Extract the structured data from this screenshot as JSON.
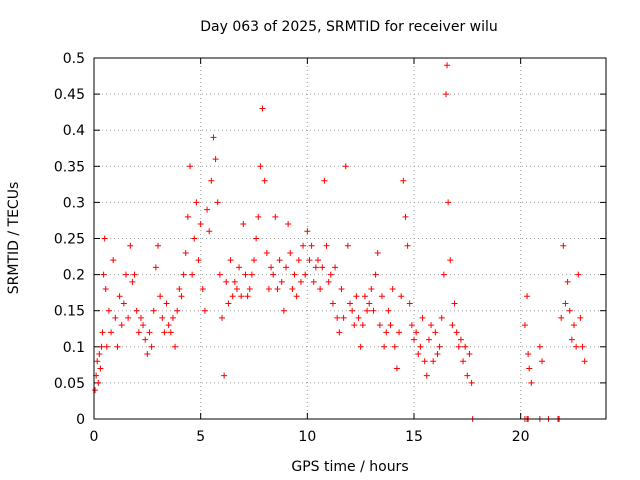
{
  "chart_data": {
    "type": "scatter",
    "title": "Day 063 of 2025, SRMTID for receiver wilu",
    "xlabel": "GPS time / hours",
    "ylabel": "SRMTID / TECUs",
    "xlim": [
      0,
      24
    ],
    "ylim": [
      0,
      0.5
    ],
    "x_ticks": [
      0,
      5,
      10,
      15,
      20
    ],
    "x_tick_labels": [
      "0",
      "5",
      "10",
      "15",
      "20"
    ],
    "y_ticks": [
      0,
      0.05,
      0.1,
      0.15,
      0.2,
      0.25,
      0.3,
      0.35,
      0.4,
      0.45,
      0.5
    ],
    "y_tick_labels": [
      "0",
      "0.05",
      "0.1",
      "0.15",
      "0.2",
      "0.25",
      "0.3",
      "0.35",
      "0.4",
      "0.45",
      "0.5"
    ],
    "grid": true,
    "marker": "+",
    "series": [
      {
        "name": "SRMTID",
        "color": "#ff0000",
        "points": [
          [
            0.05,
            0.04
          ],
          [
            0.1,
            0.06
          ],
          [
            0.15,
            0.08
          ],
          [
            0.2,
            0.05
          ],
          [
            0.25,
            0.09
          ],
          [
            0.3,
            0.07
          ],
          [
            0.35,
            0.1
          ],
          [
            0.4,
            0.12
          ],
          [
            0.45,
            0.2
          ],
          [
            0.5,
            0.25
          ],
          [
            0.55,
            0.18
          ],
          [
            0.6,
            0.1
          ],
          [
            0.7,
            0.15
          ],
          [
            0.8,
            0.12
          ],
          [
            0.9,
            0.22
          ],
          [
            1.0,
            0.14
          ],
          [
            1.1,
            0.1
          ],
          [
            1.2,
            0.17
          ],
          [
            1.3,
            0.13
          ],
          [
            1.4,
            0.16
          ],
          [
            1.5,
            0.2
          ],
          [
            1.6,
            0.14
          ],
          [
            1.7,
            0.24
          ],
          [
            1.8,
            0.19
          ],
          [
            1.9,
            0.2
          ],
          [
            2.0,
            0.15
          ],
          [
            2.1,
            0.12
          ],
          [
            2.2,
            0.14
          ],
          [
            2.3,
            0.13
          ],
          [
            2.4,
            0.11
          ],
          [
            2.5,
            0.09
          ],
          [
            2.6,
            0.12
          ],
          [
            2.7,
            0.1
          ],
          [
            2.8,
            0.15
          ],
          [
            2.9,
            0.21
          ],
          [
            3.0,
            0.24
          ],
          [
            3.1,
            0.17
          ],
          [
            3.2,
            0.14
          ],
          [
            3.3,
            0.12
          ],
          [
            3.4,
            0.16
          ],
          [
            3.5,
            0.13
          ],
          [
            3.6,
            0.12
          ],
          [
            3.7,
            0.14
          ],
          [
            3.8,
            0.1
          ],
          [
            3.9,
            0.15
          ],
          [
            4.0,
            0.18
          ],
          [
            4.1,
            0.17
          ],
          [
            4.2,
            0.2
          ],
          [
            4.3,
            0.23
          ],
          [
            4.4,
            0.28
          ],
          [
            4.5,
            0.35
          ],
          [
            4.6,
            0.2
          ],
          [
            4.7,
            0.25
          ],
          [
            4.8,
            0.3
          ],
          [
            4.9,
            0.22
          ],
          [
            5.0,
            0.27
          ],
          [
            5.1,
            0.18
          ],
          [
            5.2,
            0.15
          ],
          [
            5.3,
            0.29
          ],
          [
            5.4,
            0.26
          ],
          [
            5.5,
            0.33
          ],
          [
            5.6,
            0.39
          ],
          [
            5.7,
            0.36
          ],
          [
            5.8,
            0.3
          ],
          [
            5.9,
            0.2
          ],
          [
            6.0,
            0.14
          ],
          [
            6.1,
            0.06
          ],
          [
            6.2,
            0.19
          ],
          [
            6.3,
            0.16
          ],
          [
            6.4,
            0.22
          ],
          [
            6.5,
            0.17
          ],
          [
            6.6,
            0.19
          ],
          [
            6.7,
            0.18
          ],
          [
            6.8,
            0.21
          ],
          [
            6.9,
            0.17
          ],
          [
            7.0,
            0.27
          ],
          [
            7.1,
            0.2
          ],
          [
            7.2,
            0.17
          ],
          [
            7.3,
            0.18
          ],
          [
            7.4,
            0.2
          ],
          [
            7.5,
            0.22
          ],
          [
            7.6,
            0.25
          ],
          [
            7.7,
            0.28
          ],
          [
            7.8,
            0.35
          ],
          [
            7.9,
            0.43
          ],
          [
            8.0,
            0.33
          ],
          [
            8.1,
            0.23
          ],
          [
            8.2,
            0.18
          ],
          [
            8.3,
            0.21
          ],
          [
            8.4,
            0.2
          ],
          [
            8.5,
            0.28
          ],
          [
            8.6,
            0.18
          ],
          [
            8.7,
            0.22
          ],
          [
            8.8,
            0.19
          ],
          [
            8.9,
            0.15
          ],
          [
            9.0,
            0.21
          ],
          [
            9.1,
            0.27
          ],
          [
            9.2,
            0.23
          ],
          [
            9.3,
            0.18
          ],
          [
            9.4,
            0.2
          ],
          [
            9.5,
            0.17
          ],
          [
            9.6,
            0.22
          ],
          [
            9.7,
            0.19
          ],
          [
            9.8,
            0.24
          ],
          [
            9.9,
            0.2
          ],
          [
            10.0,
            0.26
          ],
          [
            10.1,
            0.22
          ],
          [
            10.2,
            0.24
          ],
          [
            10.3,
            0.19
          ],
          [
            10.4,
            0.21
          ],
          [
            10.5,
            0.22
          ],
          [
            10.6,
            0.18
          ],
          [
            10.7,
            0.21
          ],
          [
            10.8,
            0.33
          ],
          [
            10.9,
            0.24
          ],
          [
            11.0,
            0.19
          ],
          [
            11.1,
            0.2
          ],
          [
            11.2,
            0.16
          ],
          [
            11.3,
            0.21
          ],
          [
            11.4,
            0.14
          ],
          [
            11.5,
            0.12
          ],
          [
            11.6,
            0.18
          ],
          [
            11.7,
            0.14
          ],
          [
            11.8,
            0.35
          ],
          [
            11.9,
            0.24
          ],
          [
            12.0,
            0.16
          ],
          [
            12.1,
            0.15
          ],
          [
            12.2,
            0.13
          ],
          [
            12.3,
            0.17
          ],
          [
            12.4,
            0.14
          ],
          [
            12.5,
            0.1
          ],
          [
            12.6,
            0.13
          ],
          [
            12.7,
            0.17
          ],
          [
            12.8,
            0.15
          ],
          [
            12.9,
            0.16
          ],
          [
            13.0,
            0.18
          ],
          [
            13.1,
            0.15
          ],
          [
            13.2,
            0.2
          ],
          [
            13.3,
            0.23
          ],
          [
            13.4,
            0.13
          ],
          [
            13.5,
            0.17
          ],
          [
            13.6,
            0.1
          ],
          [
            13.7,
            0.12
          ],
          [
            13.8,
            0.15
          ],
          [
            13.9,
            0.13
          ],
          [
            14.0,
            0.18
          ],
          [
            14.1,
            0.1
          ],
          [
            14.2,
            0.07
          ],
          [
            14.3,
            0.12
          ],
          [
            14.4,
            0.17
          ],
          [
            14.5,
            0.33
          ],
          [
            14.6,
            0.28
          ],
          [
            14.7,
            0.24
          ],
          [
            14.8,
            0.16
          ],
          [
            14.9,
            0.13
          ],
          [
            15.0,
            0.11
          ],
          [
            15.1,
            0.12
          ],
          [
            15.2,
            0.09
          ],
          [
            15.3,
            0.1
          ],
          [
            15.4,
            0.14
          ],
          [
            15.5,
            0.08
          ],
          [
            15.6,
            0.06
          ],
          [
            15.7,
            0.11
          ],
          [
            15.8,
            0.13
          ],
          [
            15.9,
            0.08
          ],
          [
            16.0,
            0.12
          ],
          [
            16.1,
            0.09
          ],
          [
            16.2,
            0.1
          ],
          [
            16.3,
            0.14
          ],
          [
            16.4,
            0.2
          ],
          [
            16.5,
            0.45
          ],
          [
            16.55,
            0.49
          ],
          [
            16.6,
            0.3
          ],
          [
            16.7,
            0.22
          ],
          [
            16.8,
            0.13
          ],
          [
            16.9,
            0.16
          ],
          [
            17.0,
            0.12
          ],
          [
            17.1,
            0.1
          ],
          [
            17.2,
            0.11
          ],
          [
            17.3,
            0.08
          ],
          [
            17.4,
            0.1
          ],
          [
            17.5,
            0.06
          ],
          [
            17.6,
            0.09
          ],
          [
            17.7,
            0.05
          ],
          [
            20.2,
            0.13
          ],
          [
            20.3,
            0.17
          ],
          [
            20.35,
            0.09
          ],
          [
            20.4,
            0.07
          ],
          [
            20.5,
            0.05
          ],
          [
            20.9,
            0.1
          ],
          [
            21.0,
            0.08
          ],
          [
            21.9,
            0.14
          ],
          [
            22.0,
            0.24
          ],
          [
            22.1,
            0.16
          ],
          [
            22.2,
            0.19
          ],
          [
            22.3,
            0.15
          ],
          [
            22.4,
            0.11
          ],
          [
            22.5,
            0.13
          ],
          [
            22.6,
            0.1
          ],
          [
            22.7,
            0.2
          ],
          [
            22.8,
            0.14
          ],
          [
            22.9,
            0.1
          ],
          [
            23.0,
            0.08
          ],
          [
            17.75,
            0.0
          ],
          [
            20.2,
            0.0
          ],
          [
            20.3,
            0.0
          ],
          [
            20.35,
            0.0
          ],
          [
            20.9,
            0.0
          ],
          [
            21.3,
            0.0
          ],
          [
            21.75,
            0.0
          ],
          [
            21.8,
            0.0
          ]
        ]
      }
    ]
  }
}
